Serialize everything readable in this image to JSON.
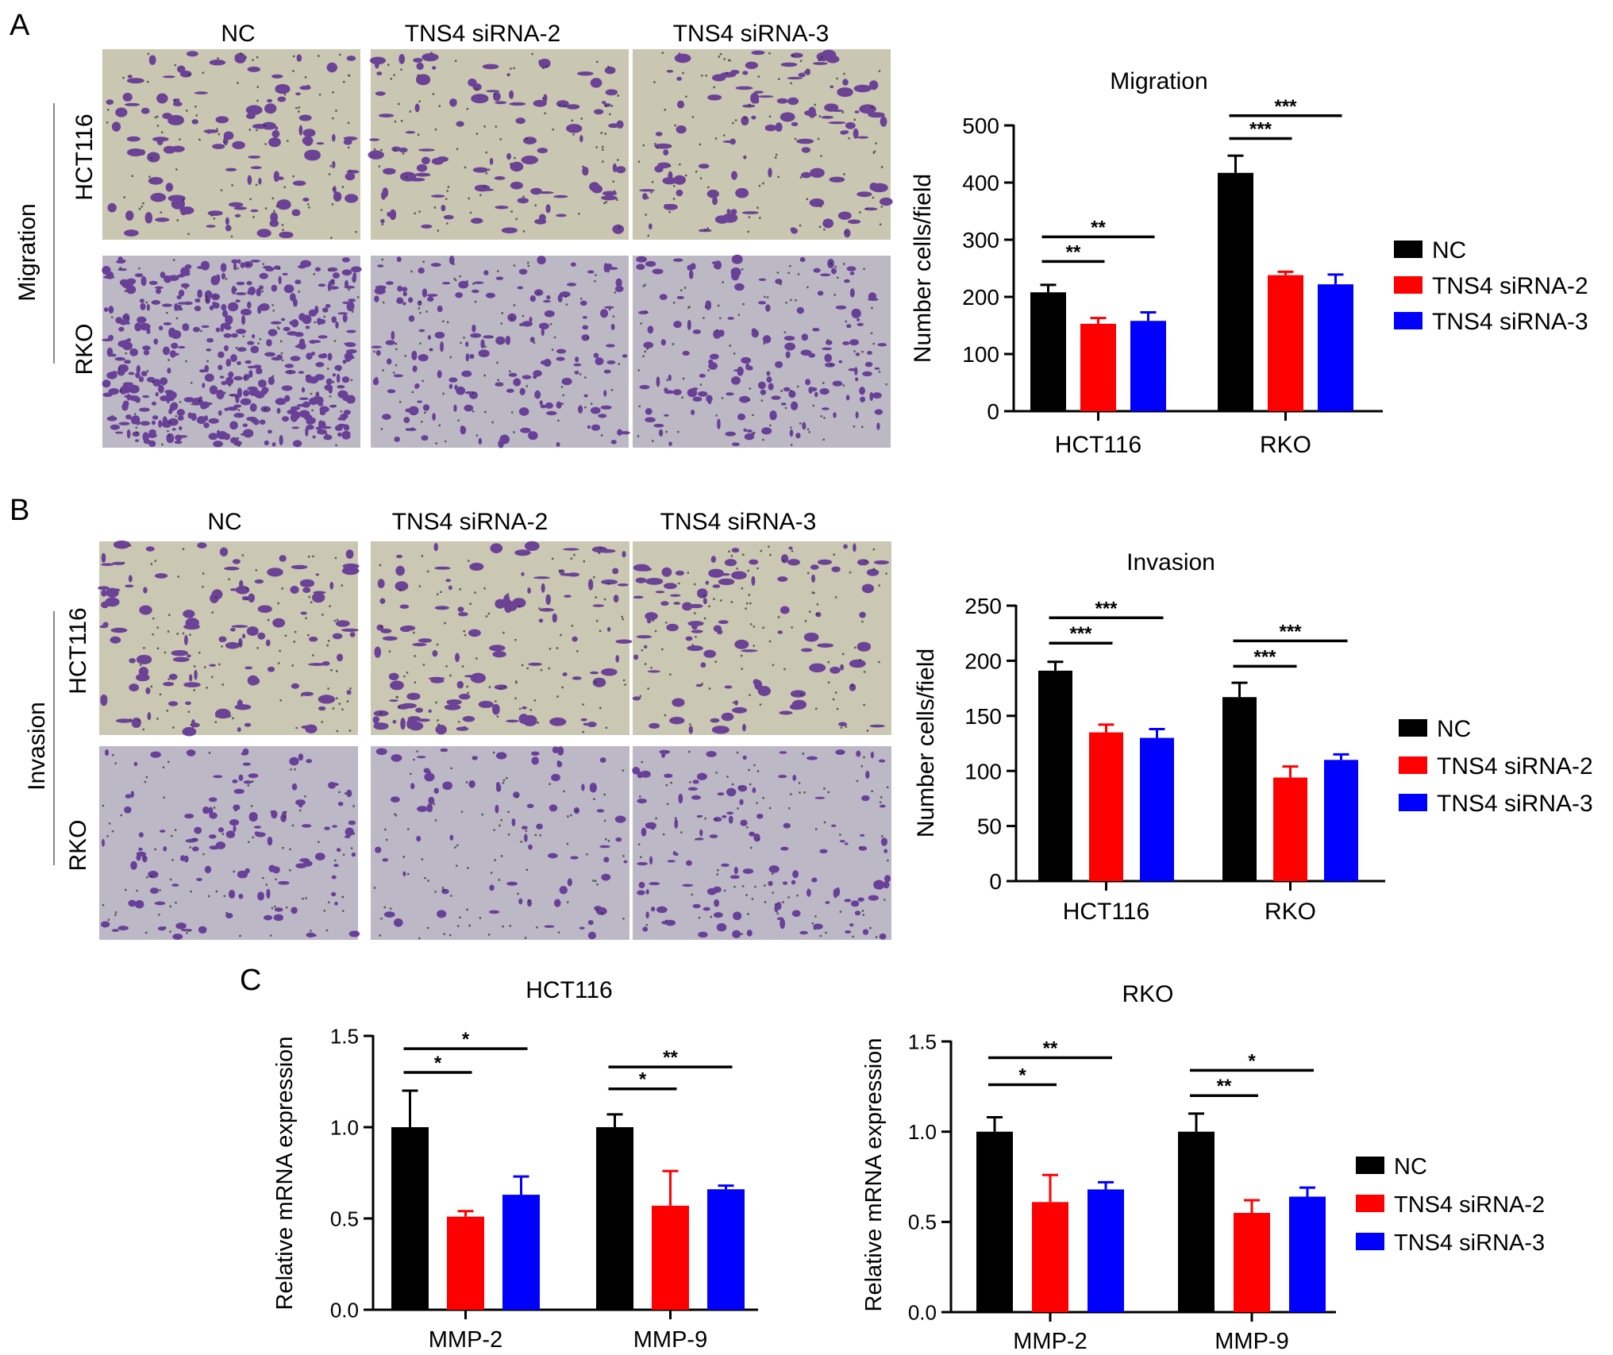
{
  "panels": [
    {
      "letter": "A"
    },
    {
      "letter": "B"
    },
    {
      "letter": "C"
    }
  ],
  "colors": {
    "NC": "#000000",
    "TNS4 siRNA-2": "#ff0000",
    "TNS4 siRNA-3": "#0000ff"
  },
  "micrographs": [
    {
      "panel": "A",
      "assay_label": "Migration",
      "column_labels": [
        "NC",
        "TNS4 siRNA-2",
        "TNS4 siRNA-3"
      ],
      "row_labels": [
        "HCT116",
        "RKO"
      ],
      "stain_color": "#5a2a91",
      "background_colors": [
        "#c9c7b1",
        "#bdb9c4"
      ]
    },
    {
      "panel": "B",
      "assay_label": "Invasion",
      "column_labels": [
        "NC",
        "TNS4 siRNA-2",
        "TNS4 siRNA-3"
      ],
      "row_labels": [
        "HCT116",
        "RKO"
      ],
      "stain_color": "#5a2a91",
      "background_colors": [
        "#cac8b2",
        "#bcb8c6"
      ]
    }
  ],
  "chart_data": [
    {
      "type": "bar",
      "title": "Migration",
      "ylabel": "Number cells/field",
      "categories": [
        "HCT116",
        "RKO"
      ],
      "ylim": [
        0,
        500
      ],
      "yticks": [
        0,
        100,
        200,
        300,
        400,
        500
      ],
      "ytick_labels": [
        "0",
        "100",
        "200",
        "300",
        "400",
        "500"
      ],
      "series": [
        {
          "name": "NC",
          "values": [
            208,
            417
          ],
          "errors": [
            13,
            30
          ]
        },
        {
          "name": "TNS4 siRNA-2",
          "values": [
            153,
            238
          ],
          "errors": [
            10,
            6
          ]
        },
        {
          "name": "TNS4 siRNA-3",
          "values": [
            158,
            222
          ],
          "errors": [
            15,
            17
          ]
        }
      ],
      "significance": [
        {
          "category": 0,
          "from": 0,
          "to": 1,
          "label": "**",
          "y": 262
        },
        {
          "category": 0,
          "from": 0,
          "to": 2,
          "label": "**",
          "y": 305
        },
        {
          "category": 1,
          "from": 0,
          "to": 1,
          "label": "***",
          "y": 477
        },
        {
          "category": 1,
          "from": 0,
          "to": 2,
          "label": "***",
          "y": 517
        }
      ],
      "legend": {
        "position": "right",
        "entries": [
          "NC",
          "TNS4 siRNA-2",
          "TNS4 siRNA-3"
        ]
      }
    },
    {
      "type": "bar",
      "title": "Invasion",
      "ylabel": "Number cells/field",
      "categories": [
        "HCT116",
        "RKO"
      ],
      "ylim": [
        0,
        250
      ],
      "yticks": [
        0,
        50,
        100,
        150,
        200,
        250
      ],
      "ytick_labels": [
        "0",
        "50",
        "100",
        "150",
        "200",
        "250"
      ],
      "series": [
        {
          "name": "NC",
          "values": [
            191,
            167
          ],
          "errors": [
            8,
            13
          ]
        },
        {
          "name": "TNS4 siRNA-2",
          "values": [
            135,
            94
          ],
          "errors": [
            7,
            10
          ]
        },
        {
          "name": "TNS4 siRNA-3",
          "values": [
            130,
            110
          ],
          "errors": [
            8,
            5
          ]
        }
      ],
      "significance": [
        {
          "category": 0,
          "from": 0,
          "to": 1,
          "label": "***",
          "y": 216
        },
        {
          "category": 0,
          "from": 0,
          "to": 2,
          "label": "***",
          "y": 239
        },
        {
          "category": 1,
          "from": 0,
          "to": 1,
          "label": "***",
          "y": 195
        },
        {
          "category": 1,
          "from": 0,
          "to": 2,
          "label": "***",
          "y": 218
        }
      ],
      "legend": {
        "position": "right",
        "entries": [
          "NC",
          "TNS4 siRNA-2",
          "TNS4 siRNA-3"
        ]
      }
    },
    {
      "type": "bar",
      "title": "HCT116",
      "ylabel": "Relative mRNA expression",
      "categories": [
        "MMP-2",
        "MMP-9"
      ],
      "ylim": [
        0,
        1.5
      ],
      "yticks": [
        0,
        0.5,
        1.0,
        1.5
      ],
      "ytick_labels": [
        "0.0",
        "0.5",
        "1.0",
        "1.5"
      ],
      "series": [
        {
          "name": "NC",
          "values": [
            1.0,
            1.0
          ],
          "errors": [
            0.2,
            0.07
          ]
        },
        {
          "name": "TNS4 siRNA-2",
          "values": [
            0.51,
            0.57
          ],
          "errors": [
            0.03,
            0.19
          ]
        },
        {
          "name": "TNS4 siRNA-3",
          "values": [
            0.63,
            0.66
          ],
          "errors": [
            0.1,
            0.02
          ]
        }
      ],
      "significance": [
        {
          "category": 0,
          "from": 0,
          "to": 1,
          "label": "*",
          "y": 1.3
        },
        {
          "category": 0,
          "from": 0,
          "to": 2,
          "label": "*",
          "y": 1.43
        },
        {
          "category": 1,
          "from": 0,
          "to": 1,
          "label": "*",
          "y": 1.21
        },
        {
          "category": 1,
          "from": 0,
          "to": 2,
          "label": "**",
          "y": 1.33
        }
      ],
      "legend": null
    },
    {
      "type": "bar",
      "title": "RKO",
      "ylabel": "Relative mRNA expression",
      "categories": [
        "MMP-2",
        "MMP-9"
      ],
      "ylim": [
        0,
        1.5
      ],
      "yticks": [
        0,
        0.5,
        1.0,
        1.5
      ],
      "ytick_labels": [
        "0.0",
        "0.5",
        "1.0",
        "1.5"
      ],
      "series": [
        {
          "name": "NC",
          "values": [
            1.0,
            1.0
          ],
          "errors": [
            0.08,
            0.1
          ]
        },
        {
          "name": "TNS4 siRNA-2",
          "values": [
            0.61,
            0.55
          ],
          "errors": [
            0.15,
            0.07
          ]
        },
        {
          "name": "TNS4 siRNA-3",
          "values": [
            0.68,
            0.64
          ],
          "errors": [
            0.04,
            0.05
          ]
        }
      ],
      "significance": [
        {
          "category": 0,
          "from": 0,
          "to": 1,
          "label": "*",
          "y": 1.26
        },
        {
          "category": 0,
          "from": 0,
          "to": 2,
          "label": "**",
          "y": 1.41
        },
        {
          "category": 1,
          "from": 0,
          "to": 1,
          "label": "**",
          "y": 1.2
        },
        {
          "category": 1,
          "from": 0,
          "to": 2,
          "label": "*",
          "y": 1.34
        }
      ],
      "legend": {
        "position": "right",
        "entries": [
          "NC",
          "TNS4 siRNA-2",
          "TNS4 siRNA-3"
        ]
      }
    }
  ]
}
